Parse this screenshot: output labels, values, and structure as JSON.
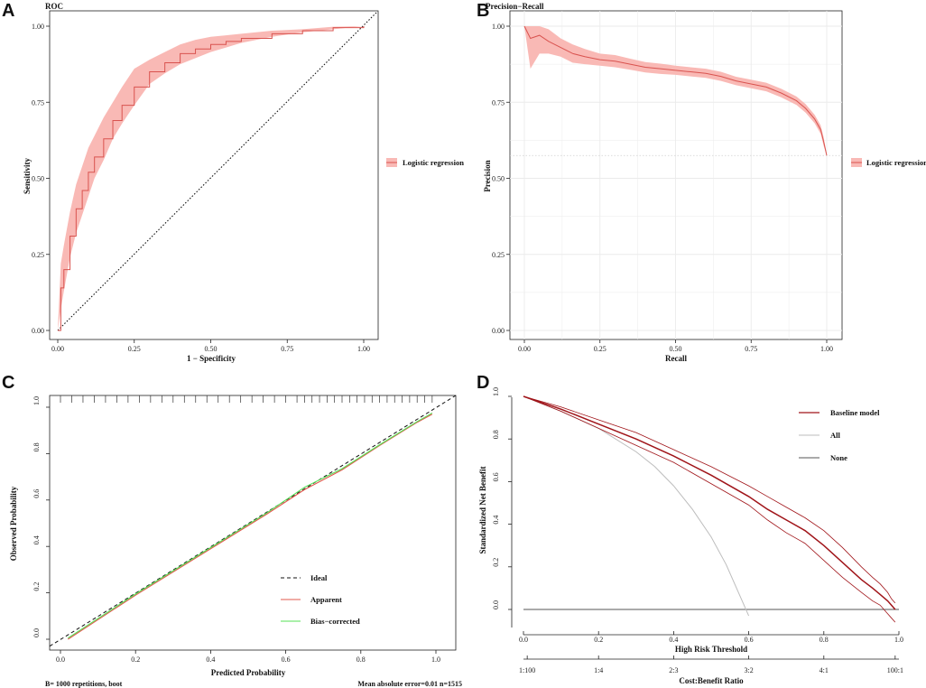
{
  "figure": {
    "panels": [
      {
        "letter": "A",
        "title": "ROC"
      },
      {
        "letter": "B",
        "title": "Precision−Recall"
      },
      {
        "letter": "C",
        "title": ""
      },
      {
        "letter": "D",
        "title": ""
      }
    ]
  },
  "colors": {
    "roc_band": "#f9b9b5",
    "roc_line": "#d9534f",
    "grid": "#ebebeb",
    "diag": "#111111",
    "apparent": "#e05a4e",
    "bias": "#55e055",
    "ideal": "#111111",
    "baseline": "#a01419",
    "all": "#bdbdbd",
    "none": "#555555"
  },
  "chart_data": [
    {
      "id": "roc",
      "type": "line",
      "title": "ROC",
      "xlabel": "1 − Specificity",
      "ylabel": "Sensitivity",
      "xlim": [
        0,
        1
      ],
      "ylim": [
        0,
        1
      ],
      "xticks": [
        "0.00",
        "0.25",
        "0.50",
        "0.75",
        "1.00"
      ],
      "yticks": [
        "0.00",
        "0.25",
        "0.50",
        "0.75",
        "1.00"
      ],
      "legend": "Logistic regression",
      "reference_line": "diagonal",
      "x": [
        0.0,
        0.01,
        0.02,
        0.04,
        0.06,
        0.08,
        0.1,
        0.12,
        0.15,
        0.18,
        0.21,
        0.25,
        0.3,
        0.35,
        0.4,
        0.45,
        0.5,
        0.55,
        0.6,
        0.7,
        0.8,
        0.9,
        1.0
      ],
      "y": [
        0.0,
        0.14,
        0.2,
        0.31,
        0.4,
        0.46,
        0.52,
        0.57,
        0.63,
        0.69,
        0.74,
        0.8,
        0.85,
        0.88,
        0.91,
        0.925,
        0.94,
        0.95,
        0.96,
        0.975,
        0.985,
        0.995,
        1.0
      ],
      "y_lower": [
        0.0,
        0.07,
        0.13,
        0.24,
        0.32,
        0.38,
        0.44,
        0.5,
        0.56,
        0.63,
        0.68,
        0.74,
        0.81,
        0.845,
        0.875,
        0.895,
        0.915,
        0.93,
        0.945,
        0.965,
        0.98,
        0.99,
        1.0
      ],
      "y_upper": [
        0.0,
        0.22,
        0.28,
        0.39,
        0.48,
        0.54,
        0.6,
        0.64,
        0.7,
        0.75,
        0.8,
        0.86,
        0.89,
        0.915,
        0.94,
        0.955,
        0.965,
        0.97,
        0.975,
        0.985,
        0.99,
        0.998,
        1.0
      ]
    },
    {
      "id": "pr",
      "type": "line",
      "title": "Precision−Recall",
      "xlabel": "Recall",
      "ylabel": "Precision",
      "xlim": [
        0,
        1
      ],
      "ylim": [
        0,
        1
      ],
      "xticks": [
        "0.00",
        "0.25",
        "0.50",
        "0.75",
        "1.00"
      ],
      "yticks": [
        "0.00",
        "0.25",
        "0.50",
        "0.75",
        "1.00"
      ],
      "legend": "Logistic regression",
      "baseline_precision": 0.575,
      "x": [
        0.0,
        0.02,
        0.05,
        0.08,
        0.12,
        0.16,
        0.2,
        0.25,
        0.3,
        0.35,
        0.4,
        0.45,
        0.5,
        0.55,
        0.6,
        0.65,
        0.7,
        0.75,
        0.8,
        0.85,
        0.9,
        0.93,
        0.96,
        0.98,
        0.99,
        1.0
      ],
      "y": [
        1.0,
        0.96,
        0.97,
        0.95,
        0.93,
        0.91,
        0.9,
        0.89,
        0.885,
        0.875,
        0.865,
        0.86,
        0.855,
        0.85,
        0.845,
        0.835,
        0.82,
        0.81,
        0.8,
        0.78,
        0.755,
        0.73,
        0.695,
        0.66,
        0.62,
        0.575
      ],
      "y_lower": [
        1.0,
        0.86,
        0.91,
        0.91,
        0.9,
        0.88,
        0.875,
        0.87,
        0.865,
        0.857,
        0.848,
        0.843,
        0.84,
        0.835,
        0.83,
        0.82,
        0.806,
        0.796,
        0.786,
        0.766,
        0.741,
        0.716,
        0.681,
        0.646,
        0.606,
        0.575
      ],
      "y_upper": [
        1.0,
        1.0,
        1.0,
        0.99,
        0.96,
        0.94,
        0.925,
        0.91,
        0.905,
        0.893,
        0.882,
        0.877,
        0.87,
        0.865,
        0.86,
        0.85,
        0.834,
        0.824,
        0.814,
        0.794,
        0.769,
        0.744,
        0.709,
        0.674,
        0.634,
        0.58
      ]
    },
    {
      "id": "calibration",
      "type": "line",
      "xlabel": "Predicted Probability",
      "ylabel": "Observed  Probability",
      "xlim": [
        -0.05,
        1.0
      ],
      "ylim": [
        -0.03,
        1.03
      ],
      "xticks": [
        "0.0",
        "0.2",
        "0.4",
        "0.6",
        "0.8",
        "1.0"
      ],
      "yticks": [
        "0.0",
        "0.2",
        "0.4",
        "0.6",
        "0.8",
        "1.0"
      ],
      "legend": [
        "Ideal",
        "Apparent",
        "Bias−corrected"
      ],
      "footer_left": "B= 1000 repetitions, boot",
      "footer_right": "Mean absolute error=0.01 n=1515",
      "apparent": {
        "x": [
          0.02,
          0.2,
          0.4,
          0.55,
          0.65,
          0.75,
          0.85,
          0.95,
          0.99
        ],
        "y": [
          0.0,
          0.19,
          0.39,
          0.54,
          0.645,
          0.73,
          0.835,
          0.935,
          0.97
        ]
      },
      "bias_corrected": {
        "x": [
          0.02,
          0.2,
          0.4,
          0.55,
          0.65,
          0.75,
          0.85,
          0.95,
          0.99
        ],
        "y": [
          0.005,
          0.195,
          0.395,
          0.545,
          0.655,
          0.735,
          0.838,
          0.938,
          0.975
        ]
      },
      "rug": [
        0.0,
        0.03,
        0.06,
        0.09,
        0.12,
        0.15,
        0.18,
        0.21,
        0.24,
        0.27,
        0.3,
        0.33,
        0.36,
        0.39,
        0.42,
        0.45,
        0.48,
        0.51,
        0.54,
        0.57,
        0.6,
        0.63,
        0.65,
        0.67,
        0.69,
        0.71,
        0.73,
        0.75,
        0.77,
        0.79,
        0.81,
        0.83,
        0.85,
        0.87,
        0.89,
        0.91,
        0.93,
        0.95,
        0.97,
        0.99
      ]
    },
    {
      "id": "dca",
      "type": "line",
      "xlabel": "High Risk Threshold",
      "ylabel": "Standardized Net Benefit",
      "xlim": [
        0,
        1
      ],
      "ylim": [
        -0.08,
        1.0
      ],
      "xticks": [
        "0.0",
        "0.2",
        "0.4",
        "0.6",
        "0.8",
        "1.0"
      ],
      "yticks": [
        "0.0",
        "0.2",
        "0.4",
        "0.6",
        "0.8",
        "1.0"
      ],
      "cost_benefit_label": "Cost:Benefit Ratio",
      "cost_benefit_ticks": [
        "1:100",
        "1:4",
        "2:3",
        "3:2",
        "4:1",
        "100:1"
      ],
      "legend": [
        "Baseline model",
        "All",
        "None"
      ],
      "baseline": {
        "x": [
          0.0,
          0.1,
          0.2,
          0.3,
          0.4,
          0.5,
          0.6,
          0.65,
          0.7,
          0.75,
          0.8,
          0.85,
          0.9,
          0.93,
          0.95,
          0.97,
          0.98,
          0.99
        ],
        "y": [
          1.0,
          0.94,
          0.87,
          0.8,
          0.72,
          0.63,
          0.53,
          0.47,
          0.42,
          0.37,
          0.3,
          0.22,
          0.14,
          0.1,
          0.07,
          0.04,
          0.02,
          0.0
        ]
      },
      "baseline_upper": {
        "x": [
          0.0,
          0.1,
          0.2,
          0.3,
          0.4,
          0.5,
          0.6,
          0.65,
          0.7,
          0.75,
          0.8,
          0.85,
          0.9,
          0.93,
          0.95,
          0.97,
          0.98,
          0.99
        ],
        "y": [
          1.0,
          0.95,
          0.89,
          0.83,
          0.75,
          0.67,
          0.58,
          0.53,
          0.48,
          0.43,
          0.37,
          0.29,
          0.2,
          0.15,
          0.12,
          0.08,
          0.05,
          0.03
        ]
      },
      "baseline_lower": {
        "x": [
          0.0,
          0.1,
          0.2,
          0.3,
          0.4,
          0.5,
          0.6,
          0.65,
          0.7,
          0.75,
          0.8,
          0.85,
          0.9,
          0.93,
          0.95,
          0.97,
          0.98,
          0.99
        ],
        "y": [
          1.0,
          0.93,
          0.85,
          0.77,
          0.69,
          0.59,
          0.49,
          0.42,
          0.36,
          0.31,
          0.23,
          0.15,
          0.08,
          0.04,
          0.02,
          -0.02,
          -0.04,
          -0.06
        ]
      },
      "all": {
        "x": [
          0.0,
          0.1,
          0.2,
          0.3,
          0.35,
          0.4,
          0.45,
          0.5,
          0.54,
          0.58,
          0.6
        ],
        "y": [
          1.0,
          0.93,
          0.85,
          0.74,
          0.67,
          0.58,
          0.47,
          0.34,
          0.21,
          0.05,
          -0.03
        ]
      },
      "none": {
        "x": [
          0.0,
          1.0
        ],
        "y": [
          0.0,
          0.0
        ]
      }
    }
  ]
}
